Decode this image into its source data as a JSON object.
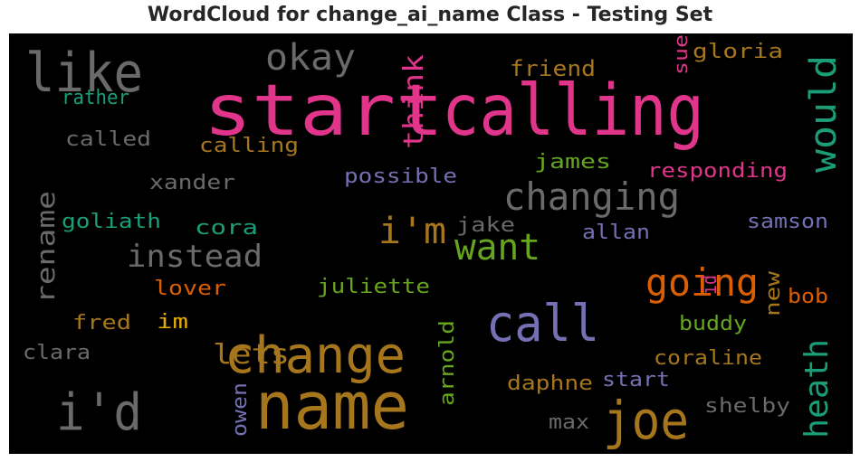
{
  "chart_data": {
    "type": "wordcloud",
    "title": "WordCloud for change_ai_name Class - Testing Set",
    "background": "#000000",
    "colors": {
      "grey": "#6a6a6a",
      "pink": "#e0358a",
      "green": "#1b9e77",
      "orange": "#d95f02",
      "olive": "#a6761d",
      "purple": "#7570b3",
      "lime": "#66a61e",
      "gold": "#e6ab02"
    },
    "words": [
      {
        "text": "start",
        "color": "pink"
      },
      {
        "text": "calling",
        "color": "pink"
      },
      {
        "text": "change",
        "color": "olive"
      },
      {
        "text": "name",
        "color": "olive"
      },
      {
        "text": "call",
        "color": "purple"
      },
      {
        "text": "joe",
        "color": "olive"
      },
      {
        "text": "like",
        "color": "grey"
      },
      {
        "text": "i'd",
        "color": "grey"
      },
      {
        "text": "changing",
        "color": "grey"
      },
      {
        "text": "going",
        "color": "orange"
      },
      {
        "text": "want",
        "color": "lime"
      },
      {
        "text": "i'm",
        "color": "olive"
      },
      {
        "text": "okay",
        "color": "grey"
      },
      {
        "text": "instead",
        "color": "grey"
      },
      {
        "text": "would",
        "color": "green"
      },
      {
        "text": "heath",
        "color": "green"
      },
      {
        "text": "think",
        "color": "pink"
      },
      {
        "text": "rename",
        "color": "grey"
      },
      {
        "text": "lets",
        "color": "olive"
      },
      {
        "text": "friend",
        "color": "olive"
      },
      {
        "text": "gloria",
        "color": "olive"
      },
      {
        "text": "sue",
        "color": "pink"
      },
      {
        "text": "rather",
        "color": "green"
      },
      {
        "text": "called",
        "color": "grey"
      },
      {
        "text": "calling",
        "color": "olive"
      },
      {
        "text": "james",
        "color": "lime"
      },
      {
        "text": "responding",
        "color": "pink"
      },
      {
        "text": "possible",
        "color": "purple"
      },
      {
        "text": "xander",
        "color": "grey"
      },
      {
        "text": "goliath",
        "color": "green"
      },
      {
        "text": "cora",
        "color": "green"
      },
      {
        "text": "jake",
        "color": "grey"
      },
      {
        "text": "allan",
        "color": "purple"
      },
      {
        "text": "samson",
        "color": "purple"
      },
      {
        "text": "lover",
        "color": "orange"
      },
      {
        "text": "juliette",
        "color": "lime"
      },
      {
        "text": "id",
        "color": "pink"
      },
      {
        "text": "new",
        "color": "olive"
      },
      {
        "text": "bob",
        "color": "orange"
      },
      {
        "text": "fred",
        "color": "olive"
      },
      {
        "text": "im",
        "color": "gold"
      },
      {
        "text": "buddy",
        "color": "lime"
      },
      {
        "text": "clara",
        "color": "grey"
      },
      {
        "text": "arnold",
        "color": "lime"
      },
      {
        "text": "coraline",
        "color": "olive"
      },
      {
        "text": "start",
        "color": "purple"
      },
      {
        "text": "daphne",
        "color": "olive"
      },
      {
        "text": "shelby",
        "color": "grey"
      },
      {
        "text": "owen",
        "color": "purple"
      },
      {
        "text": "max",
        "color": "grey"
      }
    ]
  }
}
